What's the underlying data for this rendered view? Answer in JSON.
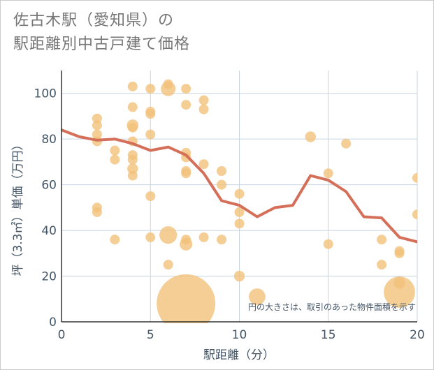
{
  "chart_data": {
    "type": "scatter",
    "title_lines": [
      "佐古木駅（愛知県）の",
      "駅距離別中古戸建て価格"
    ],
    "xlabel": "駅距離（分）",
    "ylabel": "坪（3.3㎡）単価（万円）",
    "xlim": [
      0,
      20
    ],
    "ylim": [
      0,
      110
    ],
    "xticks": [
      0,
      5,
      10,
      15,
      20
    ],
    "yticks": [
      0,
      20,
      40,
      60,
      80,
      100
    ],
    "x_tick_labels": [
      "0",
      "5",
      "10",
      "15",
      "20"
    ],
    "y_tick_labels": [
      "0",
      "20",
      "40",
      "60",
      "80",
      "100"
    ],
    "annotation": "円の大きさは、取引のあった物件面積を示す",
    "colors": {
      "bubble": "#f2c27a",
      "line": "#d4705a",
      "grid": "#c8d4e0"
    },
    "points": [
      {
        "x": 2,
        "y": 89,
        "s": 1
      },
      {
        "x": 2,
        "y": 86,
        "s": 1
      },
      {
        "x": 2,
        "y": 82,
        "s": 1
      },
      {
        "x": 2,
        "y": 79,
        "s": 1
      },
      {
        "x": 2,
        "y": 50,
        "s": 1
      },
      {
        "x": 2,
        "y": 48,
        "s": 1
      },
      {
        "x": 3,
        "y": 75,
        "s": 1
      },
      {
        "x": 3,
        "y": 71,
        "s": 1
      },
      {
        "x": 3,
        "y": 36,
        "s": 1
      },
      {
        "x": 4,
        "y": 103,
        "s": 1
      },
      {
        "x": 4,
        "y": 94,
        "s": 1
      },
      {
        "x": 4,
        "y": 86,
        "s": 1.2
      },
      {
        "x": 4,
        "y": 85,
        "s": 1
      },
      {
        "x": 4,
        "y": 79,
        "s": 1
      },
      {
        "x": 4,
        "y": 73,
        "s": 1
      },
      {
        "x": 4,
        "y": 71,
        "s": 1
      },
      {
        "x": 4,
        "y": 67,
        "s": 1.1
      },
      {
        "x": 4,
        "y": 64,
        "s": 1
      },
      {
        "x": 5,
        "y": 102,
        "s": 1
      },
      {
        "x": 5,
        "y": 92,
        "s": 1
      },
      {
        "x": 5,
        "y": 91,
        "s": 1
      },
      {
        "x": 5,
        "y": 82,
        "s": 1
      },
      {
        "x": 5,
        "y": 55,
        "s": 1
      },
      {
        "x": 5,
        "y": 37,
        "s": 1
      },
      {
        "x": 6,
        "y": 104,
        "s": 1
      },
      {
        "x": 6,
        "y": 102,
        "s": 1.5
      },
      {
        "x": 6,
        "y": 38,
        "s": 1.8
      },
      {
        "x": 6,
        "y": 25,
        "s": 1
      },
      {
        "x": 7,
        "y": 102,
        "s": 1
      },
      {
        "x": 7,
        "y": 95,
        "s": 1
      },
      {
        "x": 7,
        "y": 74,
        "s": 1
      },
      {
        "x": 7,
        "y": 72,
        "s": 1
      },
      {
        "x": 7,
        "y": 66,
        "s": 1
      },
      {
        "x": 7,
        "y": 65,
        "s": 1
      },
      {
        "x": 7,
        "y": 36,
        "s": 1
      },
      {
        "x": 7,
        "y": 34,
        "s": 1.3
      },
      {
        "x": 7,
        "y": 8,
        "s": 6.0
      },
      {
        "x": 8,
        "y": 97,
        "s": 1
      },
      {
        "x": 8,
        "y": 93,
        "s": 1
      },
      {
        "x": 8,
        "y": 69,
        "s": 1
      },
      {
        "x": 8,
        "y": 37,
        "s": 1
      },
      {
        "x": 9,
        "y": 66,
        "s": 1
      },
      {
        "x": 9,
        "y": 60,
        "s": 1
      },
      {
        "x": 9,
        "y": 36,
        "s": 1
      },
      {
        "x": 10,
        "y": 56,
        "s": 1
      },
      {
        "x": 10,
        "y": 48,
        "s": 1
      },
      {
        "x": 10,
        "y": 43,
        "s": 1
      },
      {
        "x": 10,
        "y": 20,
        "s": 1.1
      },
      {
        "x": 11,
        "y": 11,
        "s": 1.7
      },
      {
        "x": 14,
        "y": 81,
        "s": 1.1
      },
      {
        "x": 15,
        "y": 65,
        "s": 1
      },
      {
        "x": 15,
        "y": 34,
        "s": 1
      },
      {
        "x": 16,
        "y": 78,
        "s": 1
      },
      {
        "x": 18,
        "y": 36,
        "s": 1
      },
      {
        "x": 18,
        "y": 25,
        "s": 1
      },
      {
        "x": 19,
        "y": 31,
        "s": 1
      },
      {
        "x": 19,
        "y": 30,
        "s": 1
      },
      {
        "x": 19,
        "y": 17,
        "s": 1.2
      },
      {
        "x": 19,
        "y": 13,
        "s": 3.2
      },
      {
        "x": 20,
        "y": 63,
        "s": 1
      },
      {
        "x": 20,
        "y": 47,
        "s": 1
      }
    ],
    "trend": {
      "x": [
        0,
        1,
        2,
        3,
        4,
        5,
        6,
        7,
        8,
        9,
        10,
        11,
        12,
        13,
        14,
        15,
        16,
        17,
        18,
        19,
        20
      ],
      "y": [
        84,
        81,
        79.5,
        80,
        78,
        75,
        76.5,
        73,
        65,
        53,
        51,
        46,
        50,
        51,
        64,
        62,
        57,
        46,
        45.5,
        37,
        35
      ]
    }
  }
}
